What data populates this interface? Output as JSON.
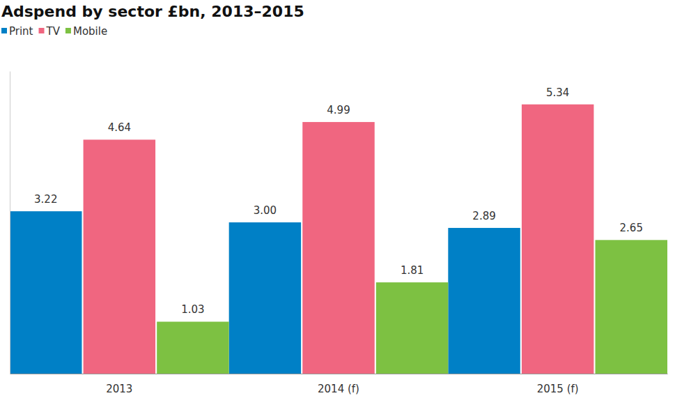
{
  "chart_data": {
    "type": "bar",
    "title": "Adspend by sector £bn, 2013–2015",
    "categories": [
      "2013",
      "2014 (f)",
      "2015 (f)"
    ],
    "series": [
      {
        "name": "Print",
        "color": "#0080c6",
        "values": [
          3.22,
          3.0,
          2.89
        ],
        "value_labels": [
          "3.22",
          "3.00",
          "2.89"
        ]
      },
      {
        "name": "TV",
        "color": "#f06680",
        "values": [
          4.64,
          4.99,
          5.34
        ],
        "value_labels": [
          "4.64",
          "4.99",
          "5.34"
        ]
      },
      {
        "name": "Mobile",
        "color": "#7dc142",
        "values": [
          1.03,
          1.81,
          2.65
        ],
        "value_labels": [
          "1.03",
          "1.81",
          "2.65"
        ]
      }
    ],
    "ylim": [
      0,
      6
    ],
    "grid": false,
    "data_labels": true,
    "tick_labels": "x",
    "legend": "top-left"
  }
}
